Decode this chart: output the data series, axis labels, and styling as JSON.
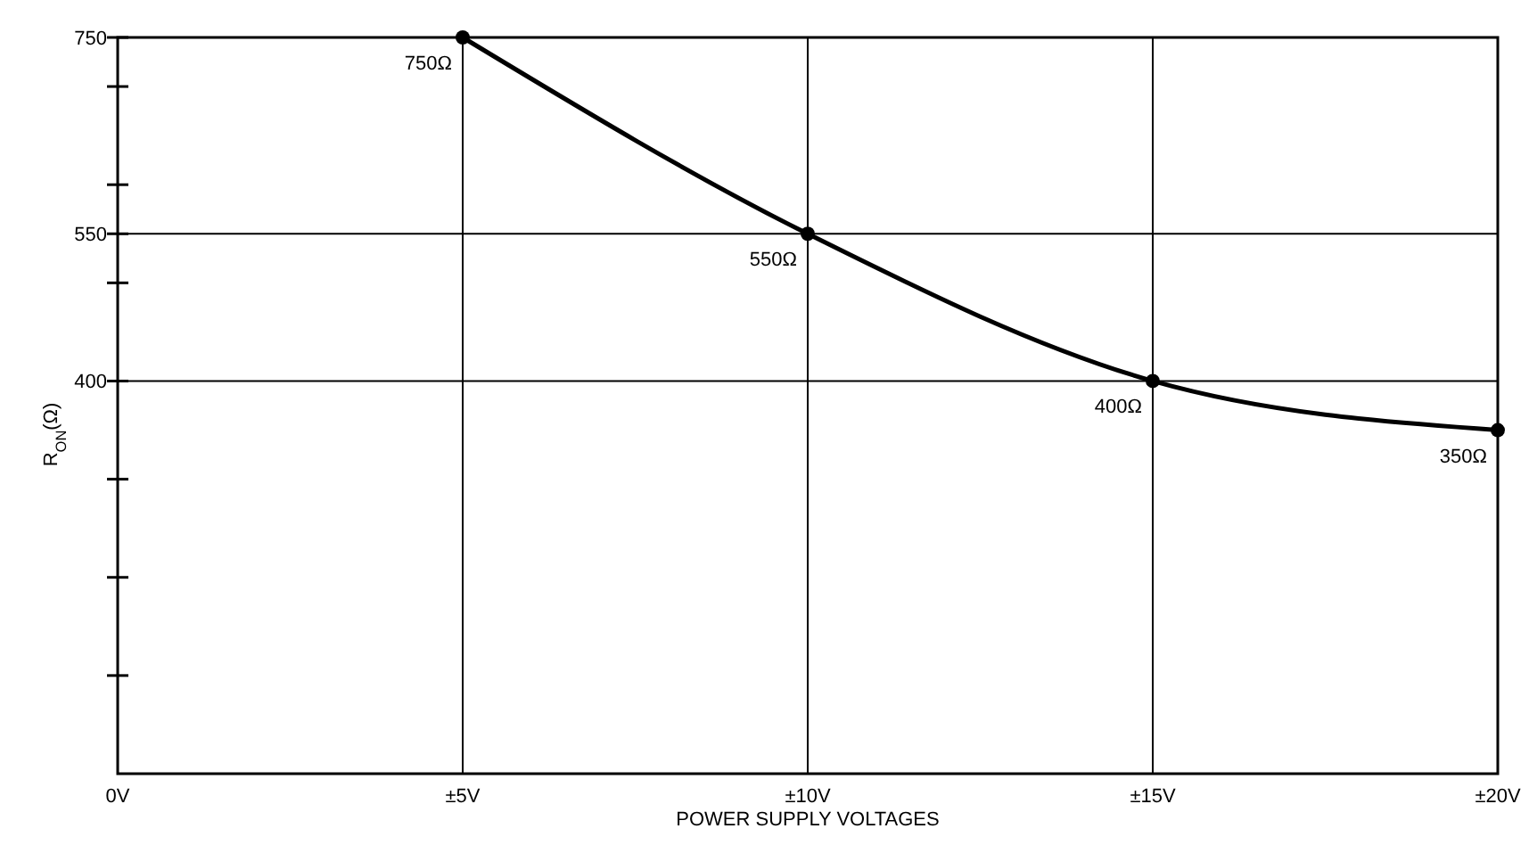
{
  "chart_data": {
    "type": "line",
    "xlabel": "POWER SUPPLY VOLTAGES",
    "ylabel": "R$_{ON}$(Ω)",
    "x": [
      5,
      10,
      15,
      20
    ],
    "series": [
      {
        "color": "#000000",
        "values": [
          750,
          550,
          400,
          350
        ],
        "value_labels": [
          "750Ω",
          "550Ω",
          "400Ω",
          "350Ω"
        ]
      }
    ],
    "xlim": [
      0,
      20
    ],
    "xticks": [
      {
        "value": 0,
        "label": "0V"
      },
      {
        "value": 5,
        "label": "±5V"
      },
      {
        "value": 10,
        "label": "±10V"
      },
      {
        "value": 15,
        "label": "±15V"
      },
      {
        "value": 20,
        "label": "±20V"
      }
    ],
    "ylim": [
      0,
      750
    ],
    "yticks": [
      {
        "value": 100,
        "label": null
      },
      {
        "value": 200,
        "label": null
      },
      {
        "value": 300,
        "label": null
      },
      400,
      {
        "value": 500,
        "label": null
      },
      550,
      {
        "value": 600,
        "label": null
      },
      {
        "value": 700,
        "label": null
      },
      750
    ],
    "grid": true,
    "marker": "circle",
    "line_style": "solid"
  }
}
